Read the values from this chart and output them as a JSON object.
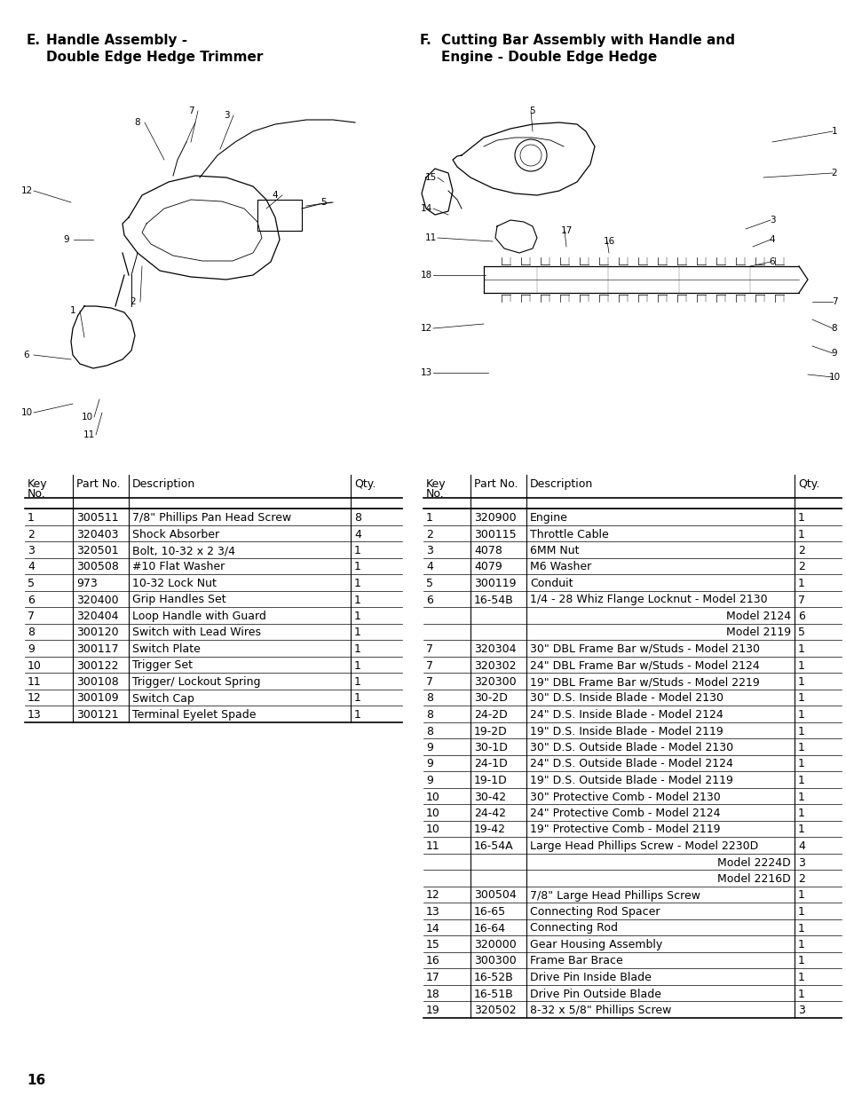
{
  "title_e1": "E.   Handle Assembly -",
  "title_e2": "      Double Edge Hedge Trimmer",
  "title_f1": "F.   Cutting Bar Assembly with Handle and",
  "title_f2": "      Engine - Double Edge Hedge",
  "page_number": "16",
  "bg_color": "#ffffff",
  "left_table_rows": [
    [
      "1",
      "300511",
      "7/8\" Phillips Pan Head Screw",
      "8"
    ],
    [
      "2",
      "320403",
      "Shock Absorber",
      "4"
    ],
    [
      "3",
      "320501",
      "Bolt, 10-32 x 2 3/4",
      "1"
    ],
    [
      "4",
      "300508",
      "#10 Flat Washer",
      "1"
    ],
    [
      "5",
      "973",
      "10-32 Lock Nut",
      "1"
    ],
    [
      "6",
      "320400",
      "Grip Handles Set",
      "1"
    ],
    [
      "7",
      "320404",
      "Loop Handle with Guard",
      "1"
    ],
    [
      "8",
      "300120",
      "Switch with Lead Wires",
      "1"
    ],
    [
      "9",
      "300117",
      "Switch Plate",
      "1"
    ],
    [
      "10",
      "300122",
      "Trigger Set",
      "1"
    ],
    [
      "11",
      "300108",
      "Trigger/ Lockout Spring",
      "1"
    ],
    [
      "12",
      "300109",
      "Switch Cap",
      "1"
    ],
    [
      "13",
      "300121",
      "Terminal Eyelet Spade",
      "1"
    ]
  ],
  "right_table_rows": [
    [
      "1",
      "320900",
      "Engine",
      "1",
      false
    ],
    [
      "2",
      "300115",
      "Throttle Cable",
      "1",
      false
    ],
    [
      "3",
      "4078",
      "6MM Nut",
      "2",
      false
    ],
    [
      "4",
      "4079",
      "M6 Washer",
      "2",
      false
    ],
    [
      "5",
      "300119",
      "Conduit",
      "1",
      false
    ],
    [
      "6",
      "16-54B",
      "1/4 - 28 Whiz Flange Locknut - Model 2130",
      "7",
      false
    ],
    [
      "",
      "",
      "Model 2124",
      "6",
      true
    ],
    [
      "",
      "",
      "Model 2119",
      "5",
      true
    ],
    [
      "7",
      "320304",
      "30\" DBL Frame Bar w/Studs - Model 2130",
      "1",
      false
    ],
    [
      "7",
      "320302",
      "24\" DBL Frame Bar w/Studs - Model 2124",
      "1",
      false
    ],
    [
      "7",
      "320300",
      "19\" DBL Frame Bar w/Studs - Model 2219",
      "1",
      false
    ],
    [
      "8",
      "30-2D",
      "30\" D.S. Inside Blade - Model 2130",
      "1",
      false
    ],
    [
      "8",
      "24-2D",
      "24\" D.S. Inside Blade - Model 2124",
      "1",
      false
    ],
    [
      "8",
      "19-2D",
      "19\" D.S. Inside Blade - Model 2119",
      "1",
      false
    ],
    [
      "9",
      "30-1D",
      "30\" D.S. Outside Blade - Model 2130",
      "1",
      false
    ],
    [
      "9",
      "24-1D",
      "24\" D.S. Outside Blade - Model 2124",
      "1",
      false
    ],
    [
      "9",
      "19-1D",
      "19\" D.S. Outside Blade - Model 2119",
      "1",
      false
    ],
    [
      "10",
      "30-42",
      "30\" Protective Comb - Model 2130",
      "1",
      false
    ],
    [
      "10",
      "24-42",
      "24\" Protective Comb - Model 2124",
      "1",
      false
    ],
    [
      "10",
      "19-42",
      "19\" Protective Comb - Model 2119",
      "1",
      false
    ],
    [
      "11",
      "16-54A",
      "Large Head Phillips Screw - Model 2230D",
      "4",
      false
    ],
    [
      "",
      "",
      "Model 2224D",
      "3",
      true
    ],
    [
      "",
      "",
      "Model 2216D",
      "2",
      true
    ],
    [
      "12",
      "300504",
      "7/8\" Large Head Phillips Screw",
      "1",
      false
    ],
    [
      "13",
      "16-65",
      "Connecting Rod Spacer",
      "1",
      false
    ],
    [
      "14",
      "16-64",
      "Connecting Rod",
      "1",
      false
    ],
    [
      "15",
      "320000",
      "Gear Housing Assembly",
      "1",
      false
    ],
    [
      "16",
      "300300",
      "Frame Bar Brace",
      "1",
      false
    ],
    [
      "17",
      "16-52B",
      "Drive Pin Inside Blade",
      "1",
      false
    ],
    [
      "18",
      "16-51B",
      "Drive Pin Outside Blade",
      "1",
      false
    ],
    [
      "19",
      "320502",
      "8-32 x 5/8\" Phillips Screw",
      "3",
      false
    ]
  ]
}
